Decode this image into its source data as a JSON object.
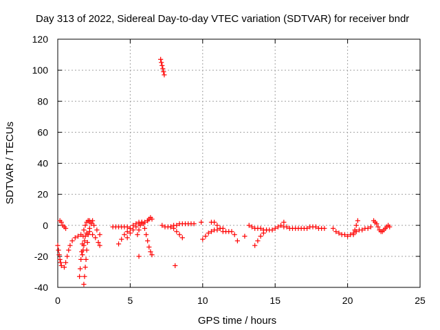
{
  "chart_data": {
    "type": "scatter",
    "title": "Day 313 of 2022, Sidereal Day-to-day VTEC variation (SDTVAR) for receiver bndr",
    "xlabel": "GPS time / hours",
    "ylabel": "SDTVAR / TECUs",
    "xlim": [
      0,
      25
    ],
    "ylim": [
      -40,
      120
    ],
    "x_ticks": [
      "0",
      "5",
      "10",
      "15",
      "20",
      "25"
    ],
    "y_ticks": [
      "-40",
      "-20",
      "0",
      "20",
      "40",
      "60",
      "80",
      "100",
      "120"
    ],
    "grid": true,
    "marker": "+",
    "series": [
      {
        "name": "SDTVAR",
        "color": "#ff0000",
        "x": [
          0.0,
          0.05,
          0.1,
          0.15,
          0.2,
          0.25,
          0.15,
          0.25,
          0.35,
          0.45,
          0.55,
          0.45,
          0.55,
          0.65,
          0.75,
          0.85,
          1.0,
          1.2,
          1.4,
          1.6,
          1.5,
          1.55,
          1.6,
          1.65,
          1.7,
          1.75,
          1.8,
          1.9,
          2.0,
          2.1,
          2.2,
          1.8,
          1.85,
          1.9,
          1.95,
          2.0,
          2.05,
          2.1,
          2.2,
          2.3,
          2.4,
          1.7,
          1.75,
          1.8,
          1.85,
          1.9,
          2.0,
          2.2,
          2.4,
          2.6,
          2.8,
          2.9,
          2.1,
          2.3,
          2.5,
          2.7,
          2.9,
          3.8,
          4.0,
          4.2,
          4.4,
          4.6,
          4.8,
          5.0,
          4.2,
          4.4,
          4.6,
          4.8,
          5.0,
          5.2,
          5.4,
          5.6,
          4.8,
          5.0,
          5.2,
          5.4,
          5.6,
          5.8,
          6.0,
          6.2,
          5.5,
          5.6,
          5.7,
          5.8,
          5.9,
          6.0,
          6.1,
          6.2,
          6.3,
          6.4,
          6.5,
          5.6,
          6.2,
          6.3,
          6.4,
          6.5,
          7.1,
          7.15,
          7.2,
          7.25,
          7.3,
          7.35,
          7.2,
          7.4,
          7.6,
          7.8,
          8.0,
          8.2,
          8.4,
          8.6,
          8.8,
          9.0,
          9.2,
          9.4,
          7.8,
          8.0,
          8.2,
          8.4,
          8.6,
          9.9,
          8.1,
          10.0,
          10.2,
          10.4,
          10.6,
          10.8,
          11.0,
          11.2,
          11.4,
          10.6,
          10.8,
          11.0,
          11.2,
          11.4,
          11.6,
          11.8,
          12.0,
          12.2,
          12.4,
          12.9,
          13.2,
          13.4,
          13.6,
          13.8,
          14.0,
          14.2,
          14.4,
          14.6,
          14.8,
          15.0,
          15.2,
          15.4,
          15.6,
          13.6,
          13.8,
          14.0,
          14.2,
          14.4,
          15.6,
          15.8,
          16.0,
          16.2,
          16.4,
          16.6,
          16.8,
          17.0,
          17.2,
          17.4,
          17.6,
          17.8,
          18.0,
          18.2,
          18.4,
          19.0,
          19.2,
          19.4,
          19.6,
          19.8,
          20.0,
          20.2,
          20.4,
          20.6,
          20.8,
          21.0,
          21.2,
          21.4,
          21.6,
          20.4,
          20.5,
          20.6,
          20.7,
          21.8,
          21.9,
          22.0,
          22.1,
          22.2,
          22.3,
          22.4,
          22.5,
          22.6,
          22.7,
          22.8,
          22.9
        ],
        "y": [
          -13,
          -16,
          -19,
          -22,
          -24,
          -26,
          3,
          2,
          0,
          -1,
          -2,
          -27,
          -24,
          -20,
          -16,
          -13,
          -10,
          -8,
          -7,
          -6,
          -33,
          -28,
          -22,
          -17,
          -12,
          -7,
          -3,
          0,
          2,
          3,
          3,
          -38,
          -33,
          -27,
          -22,
          -16,
          -11,
          -6,
          -2,
          1,
          3,
          -19,
          -16,
          -13,
          -10,
          -7,
          -5,
          -4,
          -6,
          -8,
          -11,
          -13,
          3,
          2,
          0,
          -3,
          -6,
          -1,
          -1,
          -1,
          -1,
          -1,
          -1,
          -2,
          -12,
          -9,
          -6,
          -4,
          -2,
          0,
          1,
          2,
          -8,
          -5,
          -3,
          -1,
          1,
          2,
          2,
          3,
          -6,
          -3,
          0,
          2,
          1,
          -2,
          -6,
          -10,
          -14,
          -17,
          -19,
          -20,
          3,
          4,
          5,
          4,
          107,
          105,
          103,
          101,
          99,
          97,
          0,
          -1,
          -1,
          -1,
          0,
          0,
          1,
          1,
          1,
          1,
          1,
          1,
          -1,
          -2,
          -4,
          -6,
          -8,
          2,
          -26,
          -9,
          -7,
          -5,
          -4,
          -3,
          -3,
          -2,
          -2,
          2,
          2,
          0,
          -2,
          -4,
          -4,
          -4,
          -4,
          -6,
          -10,
          -7,
          0,
          -1,
          -2,
          -2,
          -2,
          -3,
          -3,
          -3,
          -3,
          -2,
          -1,
          0,
          2,
          -13,
          -10,
          -7,
          -5,
          -3,
          -1,
          -1,
          -2,
          -2,
          -2,
          -2,
          -2,
          -2,
          -2,
          -1,
          -1,
          -1,
          -2,
          -2,
          -2,
          -2,
          -4,
          -5,
          -6,
          -6,
          -7,
          -6,
          -5,
          -4,
          -3,
          -3,
          -2,
          -2,
          -1,
          -6,
          -3,
          0,
          3,
          3,
          2,
          1,
          -1,
          -3,
          -4,
          -4,
          -3,
          -2,
          -1,
          0,
          -1
        ]
      }
    ]
  }
}
